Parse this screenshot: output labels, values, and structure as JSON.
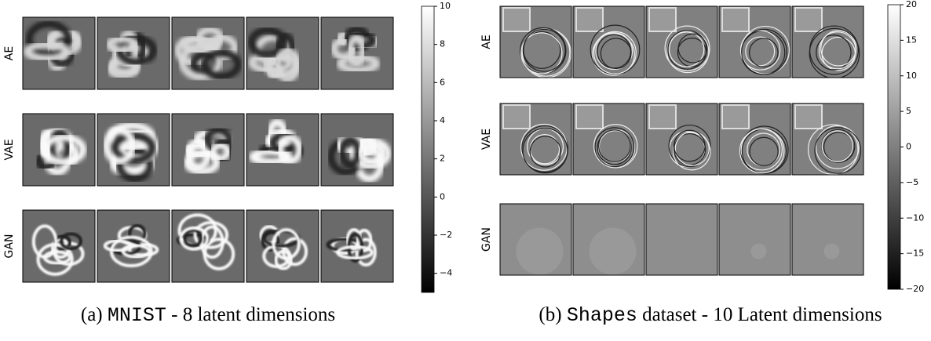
{
  "panels": [
    {
      "rows": [
        "AE",
        "VAE",
        "GAN"
      ],
      "colorbar": {
        "lim": [
          -5,
          10
        ],
        "ticks": [
          {
            "value": -4,
            "label": "−4"
          },
          {
            "value": -2,
            "label": "−2"
          },
          0,
          2,
          4,
          6,
          8,
          10
        ]
      },
      "caption": {
        "label": "(a)",
        "dataset": "MNIST",
        "text": "- 8 latent dimensions"
      }
    },
    {
      "rows": [
        "AE",
        "VAE",
        "GAN"
      ],
      "colorbar": {
        "lim": [
          -20,
          20
        ],
        "ticks": [
          {
            "value": -20,
            "label": "−20"
          },
          {
            "value": -15,
            "label": "−15"
          },
          {
            "value": -10,
            "label": "−10"
          },
          {
            "value": -5,
            "label": "−5"
          },
          0,
          5,
          10,
          15,
          20
        ]
      },
      "caption": {
        "label": "(b)",
        "dataset": "Shapes",
        "text": "dataset - 10 Latent dimensions"
      }
    }
  ]
}
